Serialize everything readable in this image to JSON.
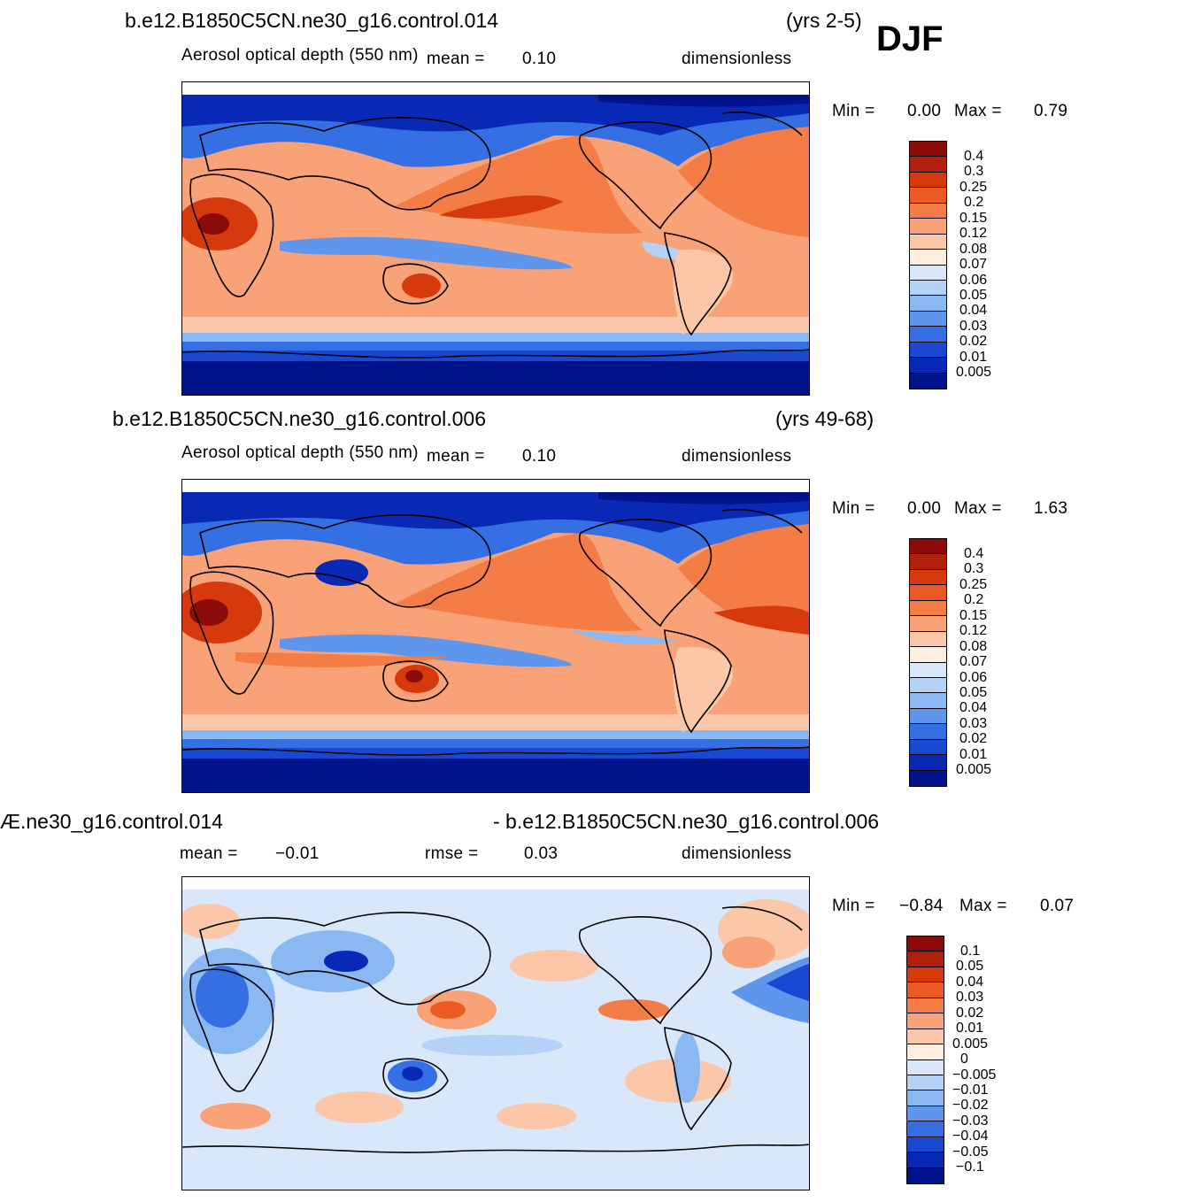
{
  "season": "DJF",
  "panels": [
    {
      "case": "b.e12.B1850C5CN.ne30_g16.control.014",
      "years": "(yrs 2-5)",
      "variable": "Aerosol optical depth (550 nm)",
      "mean_label": "mean =",
      "mean_value": "0.10",
      "units": "dimensionless",
      "min_label": "Min =",
      "min_value": "0.00",
      "max_label": "Max =",
      "max_value": "0.79",
      "levels": [
        "0.4",
        "0.3",
        "0.25",
        "0.2",
        "0.15",
        "0.12",
        "0.08",
        "0.07",
        "0.06",
        "0.05",
        "0.04",
        "0.03",
        "0.02",
        "0.01",
        "0.005"
      ],
      "colors": [
        "#8b0a0a",
        "#b0200a",
        "#d63a0c",
        "#ec5a24",
        "#f47c45",
        "#f9a277",
        "#fcc6a8",
        "#fdeedf",
        "#d8e8fa",
        "#b4d2f6",
        "#8ab8f2",
        "#5e96ee",
        "#356fe4",
        "#1949d2",
        "#0828b6",
        "#00138a"
      ]
    },
    {
      "case": "b.e12.B1850C5CN.ne30_g16.control.006",
      "years": "(yrs 49-68)",
      "variable": "Aerosol optical depth (550 nm)",
      "mean_label": "mean =",
      "mean_value": "0.10",
      "units": "dimensionless",
      "min_label": "Min =",
      "min_value": "0.00",
      "max_label": "Max =",
      "max_value": "1.63",
      "levels": [
        "0.4",
        "0.3",
        "0.25",
        "0.2",
        "0.15",
        "0.12",
        "0.08",
        "0.07",
        "0.06",
        "0.05",
        "0.04",
        "0.03",
        "0.02",
        "0.01",
        "0.005"
      ],
      "colors": [
        "#8b0a0a",
        "#b0200a",
        "#d63a0c",
        "#ec5a24",
        "#f47c45",
        "#f9a277",
        "#fcc6a8",
        "#fdeedf",
        "#d8e8fa",
        "#b4d2f6",
        "#8ab8f2",
        "#5e96ee",
        "#356fe4",
        "#1949d2",
        "#0828b6",
        "#00138a"
      ]
    },
    {
      "case_left": "Æ.ne30_g16.control.014",
      "case_right": "- b.e12.B1850C5CN.ne30_g16.control.006",
      "mean_label": "mean =",
      "mean_value": "−0.01",
      "rmse_label": "rmse =",
      "rmse_value": "0.03",
      "units": "dimensionless",
      "min_label": "Min =",
      "min_value": "−0.84",
      "max_label": "Max =",
      "max_value": "0.07",
      "levels": [
        "0.1",
        "0.05",
        "0.04",
        "0.03",
        "0.02",
        "0.01",
        "0.005",
        "0",
        "−0.005",
        "−0.01",
        "−0.02",
        "−0.03",
        "−0.04",
        "−0.05",
        "−0.1"
      ],
      "colors": [
        "#8b0a0a",
        "#b0200a",
        "#d63a0c",
        "#ec5a24",
        "#f47c45",
        "#f9a277",
        "#fcc6a8",
        "#fdeedf",
        "#d8e8fa",
        "#b4d2f6",
        "#8ab8f2",
        "#5e96ee",
        "#356fe4",
        "#1949d2",
        "#0828b6",
        "#00138a"
      ]
    }
  ]
}
